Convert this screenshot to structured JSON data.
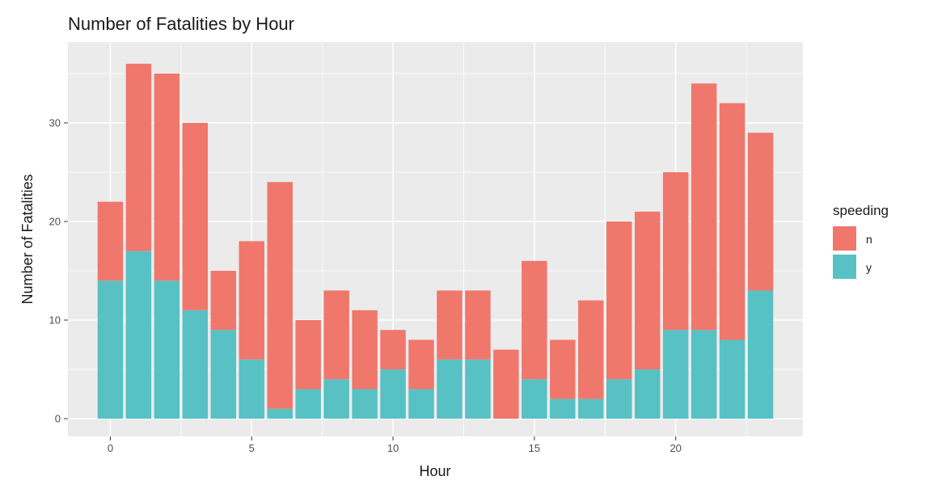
{
  "chart_data": {
    "type": "bar",
    "stacked": true,
    "title": "Number of Fatalities by Hour",
    "xlabel": "Hour",
    "ylabel": "Number of Fatalities",
    "x": [
      0,
      1,
      2,
      3,
      4,
      5,
      6,
      7,
      8,
      9,
      10,
      11,
      12,
      13,
      14,
      15,
      16,
      17,
      18,
      19,
      20,
      21,
      22,
      23
    ],
    "xlim": [
      -1.5,
      24.5
    ],
    "ylim": [
      -1.8,
      38.2
    ],
    "x_ticks": [
      0,
      5,
      10,
      15,
      20
    ],
    "y_ticks": [
      0,
      10,
      20,
      30
    ],
    "grid": true,
    "legend": {
      "title": "speeding",
      "position": "right"
    },
    "series": [
      {
        "name": "n",
        "color": "#F8766D",
        "values": [
          8,
          19,
          21,
          19,
          6,
          12,
          23,
          7,
          9,
          8,
          4,
          5,
          7,
          7,
          7,
          12,
          6,
          10,
          16,
          16,
          16,
          25,
          24,
          16
        ]
      },
      {
        "name": "y",
        "color": "#00BFC4",
        "values": [
          14,
          17,
          14,
          11,
          9,
          6,
          1,
          3,
          4,
          3,
          5,
          3,
          6,
          6,
          0,
          4,
          2,
          2,
          4,
          5,
          9,
          9,
          8,
          13
        ]
      }
    ],
    "render_colors": {
      "n": "#F0776C",
      "y": "#57C1C4",
      "panel": "#EBEBEB",
      "grid": "#FFFFFF",
      "tick": "#333333"
    }
  }
}
